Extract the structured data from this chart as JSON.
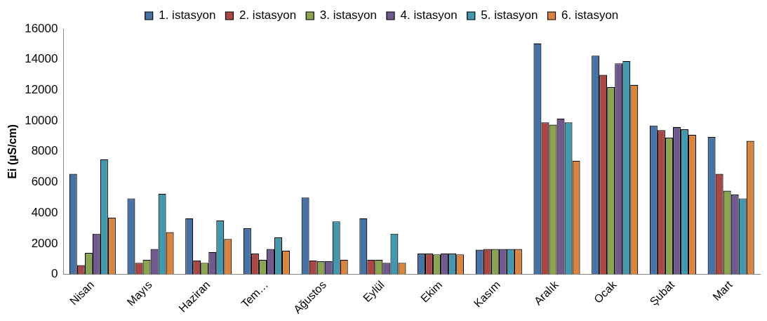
{
  "chart_data": {
    "type": "bar",
    "ylabel": "Ei (µS/cm)",
    "categories": [
      "Nisan",
      "Mayıs",
      "Haziran",
      "Tem…",
      "Ağustos",
      "Eylül",
      "Ekim",
      "Kasım",
      "Aralık",
      "Ocak",
      "Şubat",
      "Mart"
    ],
    "series": [
      {
        "name": "1. istasyon",
        "color": "#4572a7",
        "values": [
          6550,
          4950,
          3650,
          3000,
          5000,
          3650,
          1350,
          1600,
          15050,
          14250,
          9700,
          8950
        ]
      },
      {
        "name": "2. istasyon",
        "color": "#aa4643",
        "values": [
          600,
          750,
          900,
          1350,
          900,
          950,
          1350,
          1650,
          9900,
          13000,
          9400,
          6550
        ]
      },
      {
        "name": "3. istasyon",
        "color": "#89a54e",
        "values": [
          1400,
          950,
          750,
          950,
          850,
          950,
          1300,
          1650,
          9750,
          12200,
          8900,
          5450
        ]
      },
      {
        "name": "4. istasyon",
        "color": "#71588f",
        "values": [
          2650,
          1650,
          1450,
          1650,
          850,
          750,
          1350,
          1650,
          10150,
          13750,
          9600,
          5200
        ]
      },
      {
        "name": "5. istasyon",
        "color": "#4198af",
        "values": [
          7500,
          5250,
          3500,
          2400,
          3450,
          2650,
          1350,
          1650,
          9900,
          13900,
          9450,
          4950
        ]
      },
      {
        "name": "6. istasyon",
        "color": "#db843d",
        "values": [
          3700,
          2750,
          2300,
          1550,
          950,
          750,
          1300,
          1650,
          7400,
          12350,
          9100,
          8700
        ]
      }
    ],
    "ylim": [
      0,
      16000
    ],
    "yticks": [
      0,
      2000,
      4000,
      6000,
      8000,
      10000,
      12000,
      14000,
      16000
    ],
    "grid": false,
    "legend": "top"
  }
}
